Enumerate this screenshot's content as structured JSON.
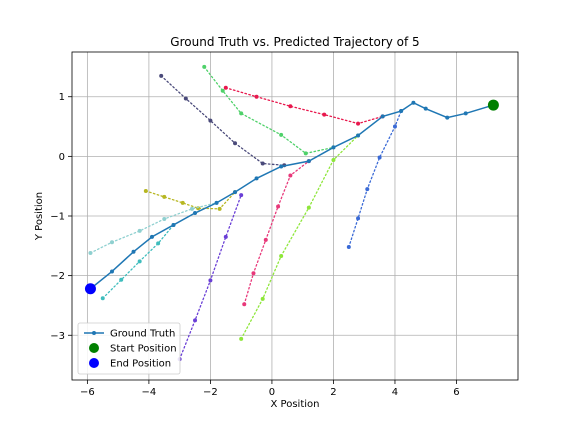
{
  "chart_data": {
    "type": "line",
    "title": "Ground Truth vs. Predicted Trajectory of 5",
    "xlabel": "X Position",
    "ylabel": "Y Position",
    "xlim": [
      -6.5,
      8.0
    ],
    "ylim": [
      -3.75,
      1.75
    ],
    "xticks": [
      -6,
      -4,
      -2,
      0,
      2,
      4,
      6
    ],
    "yticks": [
      -3,
      -2,
      -1,
      0,
      1
    ],
    "grid": true,
    "legend_position": "lower-left",
    "ground_truth": {
      "name": "Ground Truth",
      "color": "#1f77b4",
      "points": [
        [
          -5.9,
          -2.22
        ],
        [
          -5.2,
          -1.93
        ],
        [
          -4.5,
          -1.6
        ],
        [
          -3.9,
          -1.35
        ],
        [
          -3.2,
          -1.15
        ],
        [
          -2.5,
          -0.95
        ],
        [
          -1.8,
          -0.78
        ],
        [
          -1.2,
          -0.6
        ],
        [
          -0.5,
          -0.37
        ],
        [
          0.3,
          -0.17
        ],
        [
          1.2,
          -0.08
        ],
        [
          2.0,
          0.15
        ],
        [
          2.8,
          0.35
        ],
        [
          3.6,
          0.67
        ],
        [
          4.2,
          0.76
        ],
        [
          4.6,
          0.9
        ],
        [
          5.0,
          0.8
        ],
        [
          5.7,
          0.65
        ],
        [
          6.3,
          0.72
        ],
        [
          7.2,
          0.86
        ]
      ]
    },
    "start_position": {
      "name": "Start Position",
      "color": "#008000",
      "x": 7.2,
      "y": 0.86
    },
    "end_position": {
      "name": "End Position",
      "color": "#0000ff",
      "x": -5.9,
      "y": -2.22
    },
    "predictions": [
      {
        "color": "#4a4a7a",
        "points": [
          [
            -3.6,
            1.35
          ],
          [
            -2.8,
            0.97
          ],
          [
            -2.0,
            0.6
          ],
          [
            -1.2,
            0.22
          ],
          [
            -0.3,
            -0.12
          ],
          [
            0.4,
            -0.15
          ]
        ]
      },
      {
        "color": "#e8184d",
        "points": [
          [
            -1.5,
            1.15
          ],
          [
            -0.5,
            1.0
          ],
          [
            0.6,
            0.84
          ],
          [
            1.7,
            0.7
          ],
          [
            2.8,
            0.55
          ],
          [
            3.6,
            0.67
          ]
        ]
      },
      {
        "color": "#4fd16a",
        "points": [
          [
            -2.2,
            1.5
          ],
          [
            -1.6,
            1.1
          ],
          [
            -1.0,
            0.72
          ],
          [
            0.3,
            0.36
          ],
          [
            1.1,
            0.05
          ],
          [
            2.0,
            0.15
          ]
        ]
      },
      {
        "color": "#b7b722",
        "points": [
          [
            -4.1,
            -0.58
          ],
          [
            -3.5,
            -0.68
          ],
          [
            -2.9,
            -0.78
          ],
          [
            -2.4,
            -0.87
          ],
          [
            -1.7,
            -0.88
          ],
          [
            -1.2,
            -0.6
          ]
        ]
      },
      {
        "color": "#8fd0d0",
        "points": [
          [
            -5.9,
            -1.62
          ],
          [
            -5.2,
            -1.44
          ],
          [
            -4.3,
            -1.25
          ],
          [
            -3.5,
            -1.05
          ],
          [
            -2.6,
            -0.88
          ],
          [
            -1.8,
            -0.78
          ]
        ]
      },
      {
        "color": "#3fbdbd",
        "points": [
          [
            -5.5,
            -2.38
          ],
          [
            -4.9,
            -2.07
          ],
          [
            -4.3,
            -1.76
          ],
          [
            -3.7,
            -1.46
          ],
          [
            -3.2,
            -1.15
          ]
        ]
      },
      {
        "color": "#6a3fd6",
        "points": [
          [
            -3.0,
            -3.4
          ],
          [
            -2.5,
            -2.75
          ],
          [
            -2.0,
            -2.08
          ],
          [
            -1.5,
            -1.35
          ],
          [
            -1.0,
            -0.65
          ]
        ]
      },
      {
        "color": "#e8387a",
        "points": [
          [
            -0.9,
            -2.48
          ],
          [
            -0.6,
            -1.96
          ],
          [
            -0.2,
            -1.4
          ],
          [
            0.2,
            -0.84
          ],
          [
            0.6,
            -0.32
          ],
          [
            1.2,
            -0.08
          ]
        ]
      },
      {
        "color": "#8ee63a",
        "points": [
          [
            -1.0,
            -3.06
          ],
          [
            -0.3,
            -2.39
          ],
          [
            0.3,
            -1.67
          ],
          [
            1.2,
            -0.86
          ],
          [
            2.0,
            -0.06
          ],
          [
            2.8,
            0.35
          ]
        ]
      },
      {
        "color": "#3a6ad6",
        "points": [
          [
            2.5,
            -1.52
          ],
          [
            2.8,
            -1.04
          ],
          [
            3.1,
            -0.55
          ],
          [
            3.5,
            -0.02
          ],
          [
            4.0,
            0.5
          ],
          [
            4.2,
            0.76
          ]
        ]
      }
    ]
  }
}
